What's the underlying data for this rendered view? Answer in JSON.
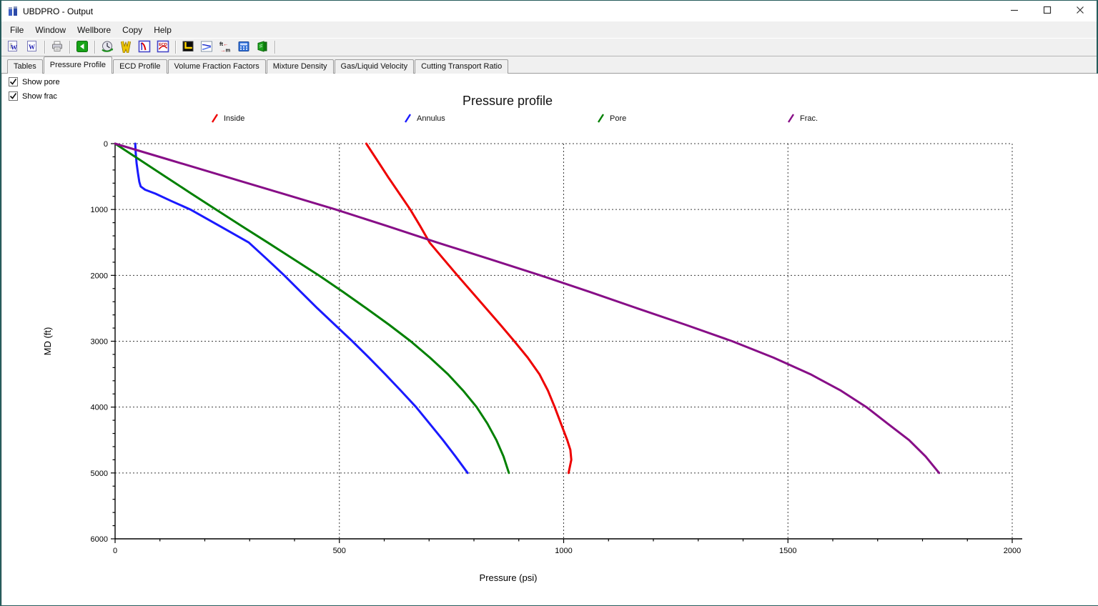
{
  "window": {
    "title": "UBDPRO - Output",
    "controls": [
      {
        "name": "minimize-button",
        "icon": "minimize-icon"
      },
      {
        "name": "maximize-button",
        "icon": "maximize-icon"
      },
      {
        "name": "close-button",
        "icon": "close-icon"
      }
    ]
  },
  "menu": {
    "items": [
      "File",
      "Window",
      "Wellbore",
      "Copy",
      "Help"
    ]
  },
  "toolbar": {
    "groups": [
      [
        "export-report-word-icon",
        "export-word-icon"
      ],
      [
        "print-icon"
      ],
      [
        "back-icon"
      ],
      [
        "world-time-icon",
        "wellbore-view-icon",
        "pressure-profile-icon",
        "ecd-profile-icon"
      ],
      [
        "well-path-icon",
        "flow-profile-icon",
        "unit-conversion-icon",
        "calculator-icon",
        "exit-report-icon"
      ]
    ],
    "glyphs": {
      "export-report-word-icon": "W",
      "export-word-icon": "W",
      "ecd-profile-icon": "ECD",
      "unit-conversion-icon": [
        "ft←",
        "→m"
      ]
    }
  },
  "tabs": {
    "items": [
      "Tables",
      "Pressure Profile",
      "ECD Profile",
      "Volume Fraction Factors",
      "Mixture Density",
      "Gas/Liquid Velocity",
      "Cutting Transport Ratio"
    ],
    "active": "Pressure Profile"
  },
  "view_options": [
    {
      "label": "Show pore",
      "checked": true
    },
    {
      "label": "Show frac",
      "checked": true
    }
  ],
  "chart_data": {
    "type": "line",
    "title": "Pressure profile",
    "xlabel": "Pressure (psi)",
    "ylabel": "MD (ft)",
    "xlim": [
      0,
      2000
    ],
    "ylim": [
      0,
      6000
    ],
    "y_inverted": true,
    "xticks": [
      0,
      500,
      1000,
      1500,
      2000
    ],
    "yticks": [
      0,
      1000,
      2000,
      3000,
      4000,
      5000,
      6000
    ],
    "x_minor_step": 100,
    "y_minor_step": 200,
    "grid": "dashed",
    "legend_position": "top",
    "series": [
      {
        "name": "Inside",
        "color": "#ee0000",
        "points": [
          [
            560,
            0
          ],
          [
            584,
            250
          ],
          [
            608,
            500
          ],
          [
            633,
            750
          ],
          [
            658,
            1000
          ],
          [
            680,
            1250
          ],
          [
            701,
            1500
          ],
          [
            732,
            1750
          ],
          [
            763,
            2000
          ],
          [
            795,
            2250
          ],
          [
            827,
            2500
          ],
          [
            859,
            2750
          ],
          [
            890,
            3000
          ],
          [
            920,
            3250
          ],
          [
            946,
            3500
          ],
          [
            965,
            3750
          ],
          [
            980,
            4000
          ],
          [
            994,
            4250
          ],
          [
            1008,
            4500
          ],
          [
            1015,
            4650
          ],
          [
            1017,
            4800
          ],
          [
            1011,
            5000
          ]
        ]
      },
      {
        "name": "Annulus",
        "color": "#1a1aff",
        "points": [
          [
            45,
            0
          ],
          [
            46,
            150
          ],
          [
            48,
            300
          ],
          [
            51,
            450
          ],
          [
            54,
            580
          ],
          [
            57,
            650
          ],
          [
            67,
            700
          ],
          [
            90,
            760
          ],
          [
            125,
            870
          ],
          [
            168,
            1000
          ],
          [
            233,
            1250
          ],
          [
            298,
            1500
          ],
          [
            338,
            1750
          ],
          [
            377,
            2000
          ],
          [
            414,
            2250
          ],
          [
            451,
            2500
          ],
          [
            490,
            2750
          ],
          [
            529,
            3000
          ],
          [
            566,
            3250
          ],
          [
            602,
            3500
          ],
          [
            637,
            3750
          ],
          [
            671,
            4000
          ],
          [
            701,
            4250
          ],
          [
            731,
            4500
          ],
          [
            759,
            4750
          ],
          [
            786,
            5000
          ]
        ]
      },
      {
        "name": "Pore",
        "color": "#008000",
        "points": [
          [
            0,
            0
          ],
          [
            56,
            250
          ],
          [
            112,
            500
          ],
          [
            168,
            750
          ],
          [
            225,
            1000
          ],
          [
            282,
            1250
          ],
          [
            340,
            1500
          ],
          [
            397,
            1750
          ],
          [
            454,
            2000
          ],
          [
            508,
            2250
          ],
          [
            560,
            2500
          ],
          [
            611,
            2750
          ],
          [
            659,
            3000
          ],
          [
            702,
            3250
          ],
          [
            742,
            3500
          ],
          [
            776,
            3750
          ],
          [
            806,
            4000
          ],
          [
            830,
            4250
          ],
          [
            850,
            4500
          ],
          [
            866,
            4750
          ],
          [
            878,
            5000
          ]
        ]
      },
      {
        "name": "Frac.",
        "color": "#870e87",
        "points": [
          [
            0,
            0
          ],
          [
            123,
            250
          ],
          [
            246,
            500
          ],
          [
            369,
            750
          ],
          [
            492,
            1000
          ],
          [
            606,
            1250
          ],
          [
            718,
            1500
          ],
          [
            834,
            1750
          ],
          [
            948,
            2000
          ],
          [
            1058,
            2250
          ],
          [
            1164,
            2500
          ],
          [
            1272,
            2750
          ],
          [
            1376,
            3000
          ],
          [
            1468,
            3250
          ],
          [
            1550,
            3500
          ],
          [
            1618,
            3750
          ],
          [
            1675,
            4000
          ],
          [
            1722,
            4250
          ],
          [
            1770,
            4500
          ],
          [
            1807,
            4750
          ],
          [
            1837,
            5000
          ]
        ]
      }
    ]
  }
}
